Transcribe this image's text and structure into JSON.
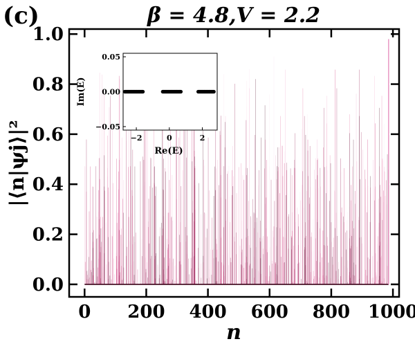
{
  "panel_label": "(c)",
  "chart_data": [
    {
      "type": "line",
      "title": "β = 4.8,V = 2.2",
      "xlabel": "n",
      "ylabel": "|⟨n|ψj⟩|²",
      "xlim": [
        -50,
        1020
      ],
      "ylim": [
        -0.05,
        1.02
      ],
      "x_ticks": [
        0,
        200,
        400,
        600,
        800,
        1000
      ],
      "x_tick_labels": [
        "0",
        "200",
        "400",
        "600",
        "800",
        "1000"
      ],
      "y_ticks": [
        0.0,
        0.2,
        0.4,
        0.6,
        0.8,
        1.0
      ],
      "y_tick_labels": [
        "0.0",
        "0.2",
        "0.4",
        "0.6",
        "0.8",
        "1.0"
      ],
      "n_sites": 987,
      "overlay_count": 40,
      "max_value": 0.98,
      "colormap": [
        "#fbe0ef",
        "#f0a8cc",
        "#e2699f",
        "#c7236b",
        "#8f0f48",
        "#4a0323"
      ],
      "description_color": "#c2185b",
      "grid": false,
      "ticks_direction": "in"
    },
    {
      "type": "scatter",
      "role": "inset",
      "xlabel": "Re(E)",
      "ylabel": "Im(E)",
      "xlim": [
        -2.8,
        2.9
      ],
      "ylim": [
        -0.055,
        0.055
      ],
      "x_ticks": [
        -2,
        0,
        2
      ],
      "x_tick_labels": [
        "−2",
        "0",
        "2"
      ],
      "y_ticks": [
        -0.05,
        0.0,
        0.05
      ],
      "y_tick_labels": [
        "−0.05",
        "0.00",
        "0.05"
      ],
      "bands": [
        [
          -2.7,
          -1.6
        ],
        [
          -0.4,
          0.7
        ],
        [
          1.75,
          2.7
        ]
      ],
      "imag_value": 0.0,
      "color": "#000000"
    }
  ]
}
